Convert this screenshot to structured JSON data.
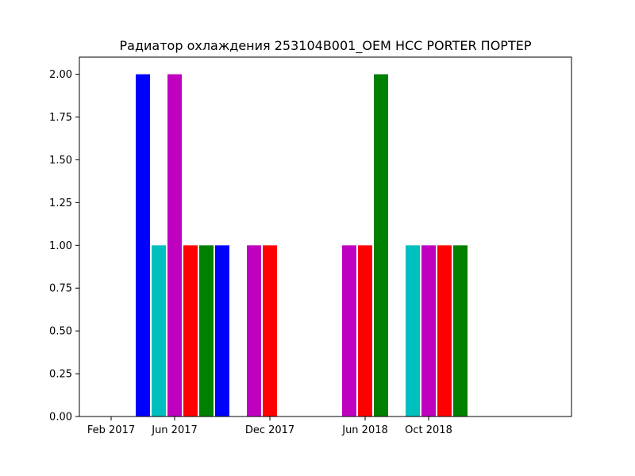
{
  "chart_data": {
    "type": "bar",
    "title": "Радиатор охлаждения 253104B001_OEM HCC PORTER ПОРТЕР",
    "xlabel": "",
    "ylabel": "",
    "x_axis": {
      "type": "date",
      "range": [
        "2016-12",
        "2019-07"
      ],
      "tick_values": [
        "2017-02",
        "2017-06",
        "2017-12",
        "2018-06",
        "2018-10"
      ],
      "tick_labels": [
        "Feb 2017",
        "Jun 2017",
        "Dec 2017",
        "Jun 2018",
        "Oct 2018"
      ]
    },
    "y_axis": {
      "range": [
        0,
        2.1
      ],
      "tick_values": [
        0,
        0.25,
        0.5,
        0.75,
        1.0,
        1.25,
        1.5,
        1.75,
        2.0
      ],
      "tick_labels": [
        "0.00",
        "0.25",
        "0.50",
        "0.75",
        "1.00",
        "1.25",
        "1.50",
        "1.75",
        "2.00"
      ]
    },
    "grid": false,
    "legend": "none",
    "bars": [
      {
        "x": "2017-04",
        "value": 2,
        "color": "#0000ff"
      },
      {
        "x": "2017-05",
        "value": 1,
        "color": "#00bfbf"
      },
      {
        "x": "2017-06",
        "value": 2,
        "color": "#bf00bf"
      },
      {
        "x": "2017-07",
        "value": 1,
        "color": "#ff0000"
      },
      {
        "x": "2017-08",
        "value": 1,
        "color": "#008000"
      },
      {
        "x": "2017-09",
        "value": 1,
        "color": "#0000ff"
      },
      {
        "x": "2017-11",
        "value": 1,
        "color": "#bf00bf"
      },
      {
        "x": "2017-12",
        "value": 1,
        "color": "#ff0000"
      },
      {
        "x": "2018-05",
        "value": 1,
        "color": "#bf00bf"
      },
      {
        "x": "2018-06",
        "value": 1,
        "color": "#ff0000"
      },
      {
        "x": "2018-07",
        "value": 2,
        "color": "#008000"
      },
      {
        "x": "2018-09",
        "value": 1,
        "color": "#00bfbf"
      },
      {
        "x": "2018-10",
        "value": 1,
        "color": "#bf00bf"
      },
      {
        "x": "2018-11",
        "value": 1,
        "color": "#ff0000"
      },
      {
        "x": "2018-12",
        "value": 1,
        "color": "#008000"
      }
    ]
  }
}
